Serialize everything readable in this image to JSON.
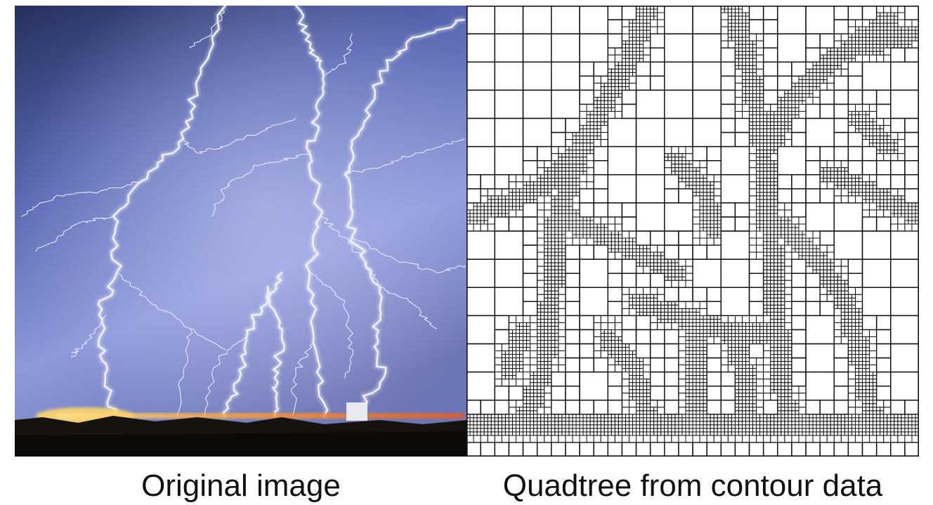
{
  "captions": {
    "left": "Original image",
    "right": "Quadtree from contour data"
  },
  "colors": {
    "sky_top": "#2a3566",
    "sky_mid": "#6474bd",
    "sky_bright": "#a9b2e6",
    "ground": "#15120f",
    "city_lights": "#ffc64a",
    "lightning": "#f4f3ff",
    "quadtree_line": "#111111",
    "quadtree_bg": "#ffffff"
  }
}
